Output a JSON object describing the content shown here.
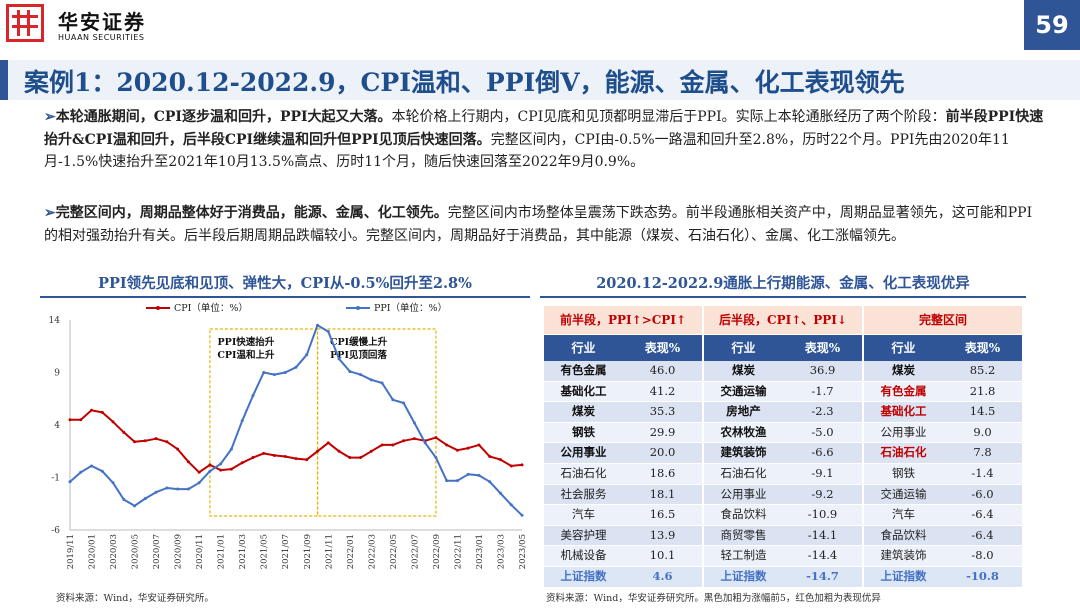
{
  "header": {
    "logo_cn": "华安证券",
    "logo_en": "HUAAN SECURITIES",
    "page_number": "59"
  },
  "title": "案例1：2020.12-2022.9，CPI温和、PPI倒V，能源、金属、化工表现领先",
  "para1": {
    "bold_lead": "本轮通胀期间，CPI逐步温和回升，PPI大起又大落。",
    "text1": "本轮价格上行期内，CPI见底和见顶都明显滞后于PPI。实际上本轮通胀经历了两个阶段：",
    "bold_mid": "前半段PPI快速抬升&CPI温和回升，后半段CPI继续温和回升但PPI见顶后快速回落。",
    "text2": "完整区间内，CPI由-0.5%一路温和回升至2.8%，历时22个月。PPI先由2020年11月-1.5%快速抬升至2021年10月13.5%高点、历时11个月，随后快速回落至2022年9月0.9%。"
  },
  "para2": {
    "bold_lead": "完整区间内，周期品整体好于消费品，能源、金属、化工领先。",
    "text": "完整区间内市场整体呈震荡下跌态势。前半段通胀相关资产中，周期品显著领先，这可能和PPI的相对强劲抬升有关。后半段后期周期品跌幅较小。完整区间内，周期品好于消费品，其中能源（煤炭、石油石化）、金属、化工涨幅领先。"
  },
  "chart": {
    "title": "PPI领先见底和见顶、弹性大，CPI从-0.5%回升至2.8%",
    "source": "资料来源：Wind，华安证券研究所。",
    "annotation_left": [
      "PPI快速抬升",
      "CPI温和上升"
    ],
    "annotation_right": [
      "CPI缓慢上升",
      "PPI见顶回落"
    ]
  },
  "chart_data": {
    "type": "line",
    "x": [
      "2019/11",
      "2019/12",
      "2020/01",
      "2020/02",
      "2020/03",
      "2020/04",
      "2020/05",
      "2020/06",
      "2020/07",
      "2020/08",
      "2020/09",
      "2020/10",
      "2020/11",
      "2020/12",
      "2021/01",
      "2021/02",
      "2021/03",
      "2021/04",
      "2021/05",
      "2021/06",
      "2021/07",
      "2021/08",
      "2021/09",
      "2021/10",
      "2021/11",
      "2021/12",
      "2022/01",
      "2022/02",
      "2022/03",
      "2022/04",
      "2022/05",
      "2022/06",
      "2022/07",
      "2022/08",
      "2022/09",
      "2022/10",
      "2022/11",
      "2022/12",
      "2023/01",
      "2023/02",
      "2023/03",
      "2023/04",
      "2023/05"
    ],
    "xticks": [
      "2019/11",
      "2020/01",
      "2020/03",
      "2020/05",
      "2020/07",
      "2020/09",
      "2020/11",
      "2021/01",
      "2021/03",
      "2021/05",
      "2021/07",
      "2021/09",
      "2021/11",
      "2022/01",
      "2022/03",
      "2022/05",
      "2022/07",
      "2022/09",
      "2022/11",
      "2023/01",
      "2023/03",
      "2023/05"
    ],
    "yticks": [
      14,
      9,
      4,
      -1,
      -6
    ],
    "ylim": [
      -6,
      14
    ],
    "series": [
      {
        "name": "CPI（单位：%）",
        "color": "#c00000",
        "values": [
          4.5,
          4.5,
          5.4,
          5.2,
          4.3,
          3.3,
          2.4,
          2.5,
          2.7,
          2.4,
          1.7,
          0.5,
          -0.5,
          0.2,
          -0.3,
          -0.2,
          0.4,
          0.9,
          1.3,
          1.1,
          1.0,
          0.8,
          0.7,
          1.5,
          2.3,
          1.5,
          0.9,
          0.9,
          1.5,
          2.1,
          2.1,
          2.5,
          2.7,
          2.5,
          2.8,
          2.1,
          1.6,
          1.8,
          2.1,
          1.0,
          0.7,
          0.1,
          0.2
        ]
      },
      {
        "name": "PPI（单位：%）",
        "color": "#4472c4",
        "values": [
          -1.4,
          -0.5,
          0.1,
          -0.4,
          -1.5,
          -3.1,
          -3.7,
          -3.0,
          -2.4,
          -2.0,
          -2.1,
          -2.1,
          -1.5,
          -0.4,
          0.3,
          1.7,
          4.4,
          6.8,
          9.0,
          8.8,
          9.0,
          9.5,
          10.7,
          13.5,
          12.9,
          10.3,
          9.1,
          8.8,
          8.3,
          8.0,
          6.4,
          6.1,
          4.2,
          2.3,
          0.9,
          -1.3,
          -1.3,
          -0.7,
          -0.8,
          -1.4,
          -2.5,
          -3.6,
          -4.6
        ]
      }
    ],
    "shaded_periods": [
      "2020/12–2021/10",
      "2021/10–2022/09"
    ]
  },
  "table": {
    "title": "2020.12-2022.9通胀上行期能源、金属、化工表现优异",
    "source": "资料来源：Wind，华安证券研究所。黑色加粗为涨幅前5，红色加粗为表现优异",
    "col_industry": "行业",
    "col_perf": "表现%",
    "groups": [
      {
        "header": "前半段，PPI↑>CPI↑",
        "rows": [
          {
            "name": "有色金属",
            "val": "46.0",
            "style": "b"
          },
          {
            "name": "基础化工",
            "val": "41.2",
            "style": "b"
          },
          {
            "name": "煤炭",
            "val": "35.3",
            "style": "b"
          },
          {
            "name": "钢铁",
            "val": "29.9",
            "style": "b"
          },
          {
            "name": "公用事业",
            "val": "20.0",
            "style": "b"
          },
          {
            "name": "石油石化",
            "val": "18.6",
            "style": ""
          },
          {
            "name": "社会服务",
            "val": "18.1",
            "style": ""
          },
          {
            "name": "汽车",
            "val": "16.5",
            "style": ""
          },
          {
            "name": "美容护理",
            "val": "13.9",
            "style": ""
          },
          {
            "name": "机械设备",
            "val": "10.1",
            "style": ""
          }
        ],
        "index": {
          "name": "上证指数",
          "val": "4.6"
        }
      },
      {
        "header": "后半段，CPI↑、PPI↓",
        "rows": [
          {
            "name": "煤炭",
            "val": "36.9",
            "style": "b"
          },
          {
            "name": "交通运输",
            "val": "-1.7",
            "style": "b"
          },
          {
            "name": "房地产",
            "val": "-2.3",
            "style": "b"
          },
          {
            "name": "农林牧渔",
            "val": "-5.0",
            "style": "b"
          },
          {
            "name": "建筑装饰",
            "val": "-6.6",
            "style": "b"
          },
          {
            "name": "石油石化",
            "val": "-9.1",
            "style": ""
          },
          {
            "name": "公用事业",
            "val": "-9.2",
            "style": ""
          },
          {
            "name": "食品饮料",
            "val": "-10.9",
            "style": ""
          },
          {
            "name": "商贸零售",
            "val": "-14.1",
            "style": ""
          },
          {
            "name": "轻工制造",
            "val": "-14.4",
            "style": ""
          }
        ],
        "index": {
          "name": "上证指数",
          "val": "-14.7"
        }
      },
      {
        "header": "完整区间",
        "rows": [
          {
            "name": "煤炭",
            "val": "85.2",
            "style": "b"
          },
          {
            "name": "有色金属",
            "val": "21.8",
            "style": "r"
          },
          {
            "name": "基础化工",
            "val": "14.5",
            "style": "r"
          },
          {
            "name": "公用事业",
            "val": "9.0",
            "style": ""
          },
          {
            "name": "石油石化",
            "val": "7.8",
            "style": "r"
          },
          {
            "name": "钢铁",
            "val": "-1.4",
            "style": ""
          },
          {
            "name": "交通运输",
            "val": "-6.0",
            "style": ""
          },
          {
            "name": "汽车",
            "val": "-6.4",
            "style": ""
          },
          {
            "name": "食品饮料",
            "val": "-6.4",
            "style": ""
          },
          {
            "name": "建筑装饰",
            "val": "-8.0",
            "style": ""
          }
        ],
        "index": {
          "name": "上证指数",
          "val": "-10.8"
        }
      }
    ]
  }
}
